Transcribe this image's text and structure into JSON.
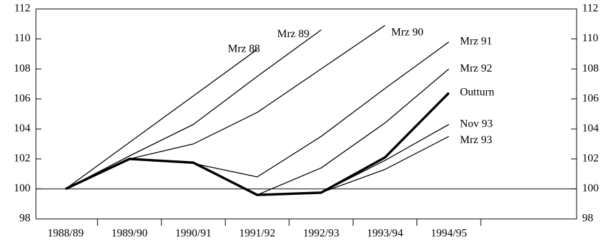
{
  "chart_data": {
    "type": "line",
    "categories": [
      "1988/89",
      "1989/90",
      "1990/91",
      "1991/92",
      "1992/93",
      "1993/94",
      "1994/95"
    ],
    "series": [
      {
        "name": "Mrz 88",
        "color": "#000000",
        "values": [
          100,
          103.1,
          106.2,
          109.3,
          null,
          null,
          null
        ]
      },
      {
        "name": "Mrz 89",
        "color": "#000000",
        "values": [
          100,
          102.2,
          104.3,
          107.5,
          110.6,
          null,
          null
        ]
      },
      {
        "name": "Mrz 90",
        "color": "#000000",
        "values": [
          100,
          102,
          103,
          105.1,
          108,
          110.9,
          null
        ]
      },
      {
        "name": "Mrz 91",
        "color": "#000000",
        "values": [
          100,
          102,
          101.7,
          100.8,
          103.5,
          106.7,
          109.8
        ]
      },
      {
        "name": "Mrz 92",
        "color": "#000000",
        "values": [
          100,
          102,
          101.7,
          99.6,
          101.4,
          104.4,
          108
        ]
      },
      {
        "name": "Outturn",
        "color": "#000000",
        "values": [
          100,
          102,
          101.75,
          99.6,
          99.75,
          102.1,
          106.4
        ]
      },
      {
        "name": "Nov 93",
        "color": "#000000",
        "values": [
          100,
          102,
          101.75,
          99.6,
          99.75,
          101.9,
          104.3
        ]
      },
      {
        "name": "Mrz 93",
        "color": "#000000",
        "values": [
          100,
          102,
          101.75,
          99.6,
          99.75,
          101.3,
          103.5
        ]
      }
    ],
    "reference_line": 100,
    "ylim": [
      98,
      112
    ],
    "yticks": [
      98,
      100,
      102,
      104,
      106,
      108,
      110,
      112
    ],
    "y2lim": [
      98,
      112
    ],
    "y2ticks": [
      98,
      100,
      102,
      104,
      106,
      108,
      110,
      112
    ],
    "grid": false
  }
}
